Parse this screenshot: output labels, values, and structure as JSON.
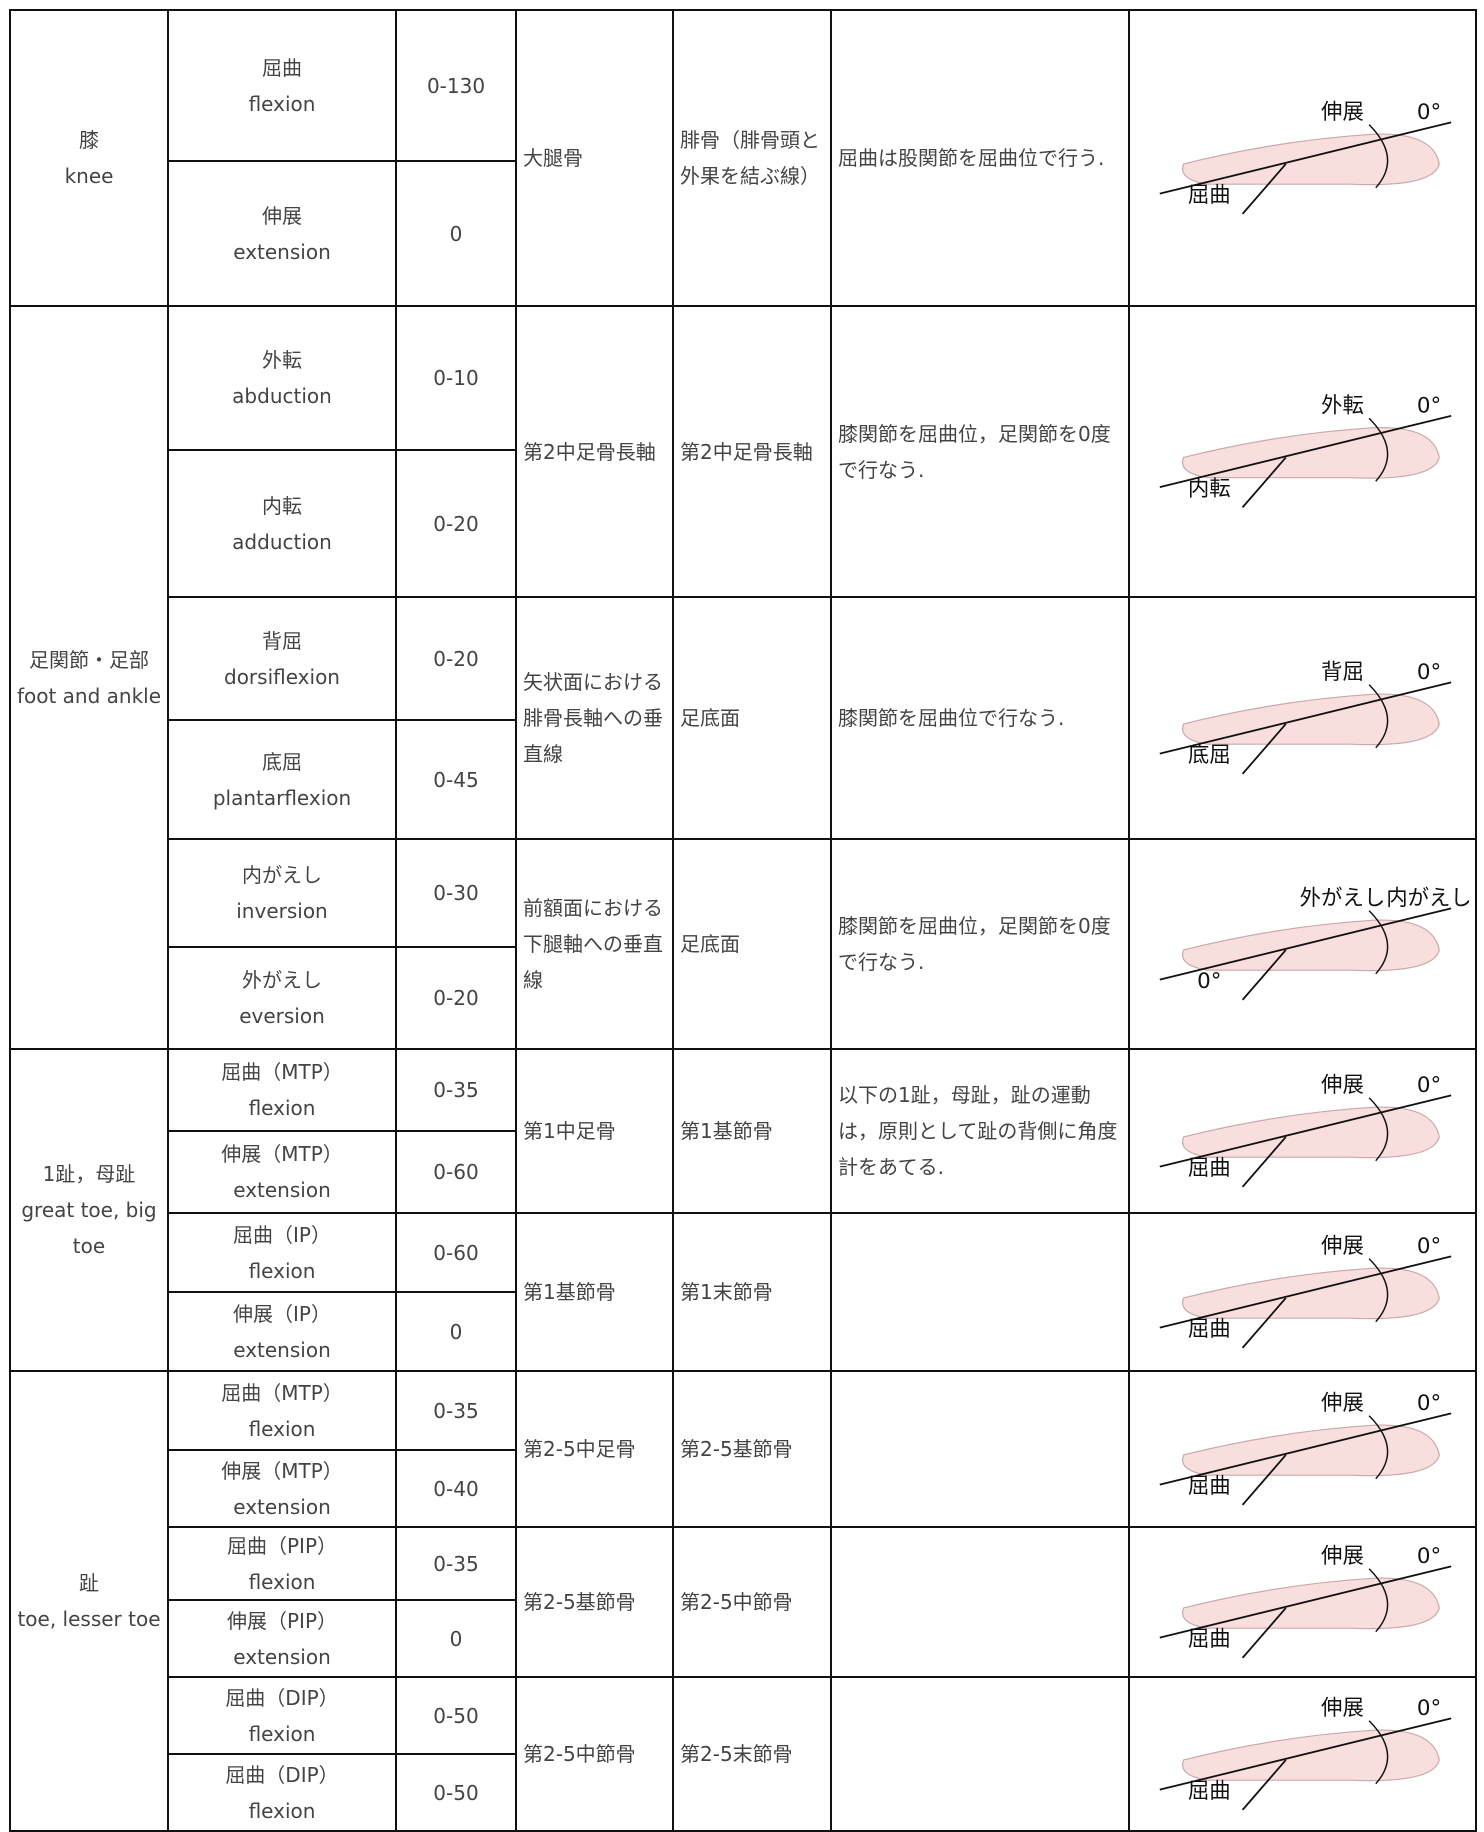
{
  "table": {
    "groups": [
      {
        "region": {
          "ja": "膝",
          "en": "knee"
        },
        "pairs": [
          {
            "basic": "大腿骨",
            "moving": "腓骨（腓骨頭と外果を結ぶ線）",
            "notes": "屈曲は股関節を屈曲位で行う.",
            "figure_labels": [
              "伸展",
              "0°",
              "屈曲"
            ],
            "motions": [
              {
                "ja": "屈曲",
                "en": "flexion",
                "range": "0-130"
              },
              {
                "ja": "伸展",
                "en": "extension",
                "range": "0"
              }
            ]
          }
        ]
      },
      {
        "region": {
          "ja": "足関節・足部",
          "en": "foot and ankle"
        },
        "pairs": [
          {
            "basic": "第2中足骨長軸",
            "moving": "第2中足骨長軸",
            "notes": "膝関節を屈曲位，足関節を0度で行なう.",
            "figure_labels": [
              "外転",
              "0°",
              "内転"
            ],
            "motions": [
              {
                "ja": "外転",
                "en": "abduction",
                "range": "0-10"
              },
              {
                "ja": "内転",
                "en": "adduction",
                "range": "0-20"
              }
            ]
          },
          {
            "basic": "矢状面における腓骨長軸への垂直線",
            "moving": "足底面",
            "notes": "膝関節を屈曲位で行なう.",
            "figure_labels": [
              "背屈",
              "0°",
              "底屈"
            ],
            "motions": [
              {
                "ja": "背屈",
                "en": "dorsiflexion",
                "range": "0-20"
              },
              {
                "ja": "底屈",
                "en": "plantarflexion",
                "range": "0-45"
              }
            ]
          },
          {
            "basic": "前額面における下腿軸への垂直線",
            "moving": "足底面",
            "notes": "膝関節を屈曲位，足関節を0度で行なう.",
            "figure_labels": [
              "外がえし",
              "内がえし",
              "0°"
            ],
            "motions": [
              {
                "ja": "内がえし",
                "en": "inversion",
                "range": "0-30"
              },
              {
                "ja": "外がえし",
                "en": "eversion",
                "range": "0-20"
              }
            ]
          }
        ]
      },
      {
        "region": {
          "ja": "1趾，母趾",
          "en": "great toe, big toe"
        },
        "pairs": [
          {
            "basic": "第1中足骨",
            "moving": "第1基節骨",
            "notes": "以下の1趾，母趾，趾の運動は，原則として趾の背側に角度計をあてる.",
            "figure_labels": [
              "伸展",
              "0°",
              "屈曲"
            ],
            "motions": [
              {
                "ja": "屈曲（MTP）",
                "en": "flexion",
                "range": "0-35"
              },
              {
                "ja": "伸展（MTP）",
                "en": "extension",
                "range": "0-60"
              }
            ]
          },
          {
            "basic": "第1基節骨",
            "moving": "第1末節骨",
            "figure_labels": [
              "伸展",
              "0°",
              "屈曲"
            ],
            "motions": [
              {
                "ja": "屈曲（IP）",
                "en": "flexion",
                "range": "0-60"
              },
              {
                "ja": "伸展（IP）",
                "en": "extension",
                "range": "0"
              }
            ]
          }
        ]
      },
      {
        "region": {
          "ja": "趾",
          "en": "toe, lesser toe"
        },
        "pairs": [
          {
            "basic": "第2-5中足骨",
            "moving": "第2-5基節骨",
            "figure_labels": [
              "伸展",
              "0°",
              "屈曲"
            ],
            "motions": [
              {
                "ja": "屈曲（MTP）",
                "en": "flexion",
                "range": "0-35"
              },
              {
                "ja": "伸展（MTP）",
                "en": "extension",
                "range": "0-40"
              }
            ]
          },
          {
            "basic": "第2-5基節骨",
            "moving": "第2-5中節骨",
            "figure_labels": [
              "伸展",
              "0°",
              "屈曲"
            ],
            "motions": [
              {
                "ja": "屈曲（PIP）",
                "en": "flexion",
                "range": "0-35"
              },
              {
                "ja": "伸展（PIP）",
                "en": "extension",
                "range": "0"
              }
            ]
          },
          {
            "basic": "第2-5中節骨",
            "moving": "第2-5末節骨",
            "figure_labels": [
              "伸展",
              "0°",
              "屈曲"
            ],
            "motions": [
              {
                "ja": "屈曲（DIP）",
                "en": "flexion",
                "range": "0-50"
              },
              {
                "ja": "屈曲（DIP）",
                "en": "flexion",
                "range": "0-50"
              }
            ]
          }
        ]
      }
    ]
  }
}
